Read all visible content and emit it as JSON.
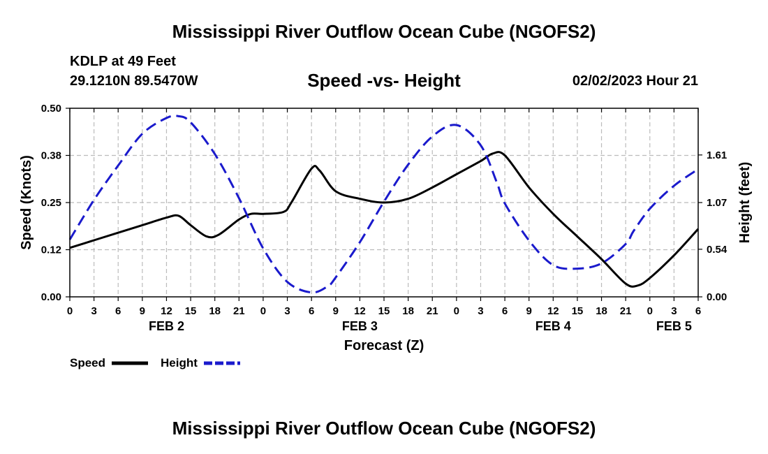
{
  "header": {
    "title": "Mississippi River Outflow Ocean Cube (NGOFS2)",
    "station": "KDLP at 49 Feet",
    "coords": "29.1210N  89.5470W",
    "subtitle": "Speed -vs- Height",
    "datetime": "02/02/2023 Hour 21"
  },
  "footer": {
    "title": "Mississippi River Outflow Ocean Cube (NGOFS2)"
  },
  "colors": {
    "speed": "#000000",
    "height": "#1a1acc",
    "grid": "#bbbbbb"
  },
  "chart_data": {
    "type": "line",
    "title": "Speed -vs- Height",
    "xlabel": "Forecast (Z)",
    "ylabel": "Speed (Knots)",
    "y2label": "Height (feet)",
    "xlim": [
      0,
      78
    ],
    "ylim": [
      0,
      0.5
    ],
    "y2lim": [
      0,
      2.14
    ],
    "x_ticks": [
      0,
      3,
      6,
      9,
      12,
      15,
      18,
      21,
      24,
      27,
      30,
      33,
      36,
      39,
      42,
      45,
      48,
      51,
      54,
      57,
      60,
      63,
      66,
      69,
      72,
      75,
      78
    ],
    "x_tick_labels": [
      "0",
      "3",
      "6",
      "9",
      "12",
      "15",
      "18",
      "21",
      "0",
      "3",
      "6",
      "9",
      "12",
      "15",
      "18",
      "21",
      "0",
      "3",
      "6",
      "9",
      "12",
      "15",
      "18",
      "21",
      "0",
      "3",
      "6"
    ],
    "y_ticks": [
      0,
      0.125,
      0.25,
      0.375,
      0.5
    ],
    "y_tick_labels": [
      "0.00",
      "0.12",
      "0.25",
      "0.38",
      "0.50"
    ],
    "y2_ticks": [
      0,
      0.54,
      1.07,
      1.61
    ],
    "y2_tick_labels": [
      "0.00",
      "0.54",
      "1.07",
      "1.61"
    ],
    "day_labels": [
      {
        "x": 12,
        "label": "FEB 2"
      },
      {
        "x": 36,
        "label": "FEB 3"
      },
      {
        "x": 60,
        "label": "FEB 4"
      },
      {
        "x": 75,
        "label": "FEB 5"
      }
    ],
    "series": [
      {
        "name": "Speed",
        "axis": "left",
        "style": "solid",
        "x": [
          0,
          3,
          6,
          9,
          12,
          13.5,
          15,
          17,
          18.5,
          21,
          22.5,
          24,
          26.5,
          27.5,
          30,
          31,
          33,
          36,
          39,
          42,
          45,
          48,
          51,
          52.5,
          54,
          57,
          60,
          63,
          66,
          69,
          70.5,
          72,
          75,
          78
        ],
        "y": [
          0.13,
          0.15,
          0.17,
          0.19,
          0.21,
          0.215,
          0.19,
          0.16,
          0.165,
          0.205,
          0.22,
          0.22,
          0.225,
          0.25,
          0.34,
          0.335,
          0.28,
          0.26,
          0.25,
          0.26,
          0.29,
          0.325,
          0.36,
          0.38,
          0.375,
          0.29,
          0.22,
          0.16,
          0.1,
          0.035,
          0.03,
          0.05,
          0.11,
          0.18
        ]
      },
      {
        "name": "Height",
        "axis": "right",
        "style": "dashed",
        "x": [
          0,
          3,
          6,
          9,
          12,
          13.5,
          15,
          18,
          21,
          24,
          27,
          30,
          32,
          33,
          36,
          39,
          42,
          45,
          48,
          51,
          53,
          54,
          57,
          60,
          63,
          66,
          69,
          70,
          72,
          75,
          78
        ],
        "y": [
          0.65,
          1.1,
          1.49,
          1.85,
          2.03,
          2.05,
          1.98,
          1.62,
          1.12,
          0.55,
          0.17,
          0.05,
          0.12,
          0.22,
          0.62,
          1.08,
          1.5,
          1.82,
          1.95,
          1.72,
          1.3,
          1.06,
          0.64,
          0.36,
          0.32,
          0.38,
          0.6,
          0.75,
          1.0,
          1.26,
          1.45
        ]
      }
    ],
    "legend": [
      {
        "label": "Speed",
        "style": "solid"
      },
      {
        "label": "Height",
        "style": "dashed"
      }
    ],
    "grid": true,
    "legend_position": "bottom-left"
  }
}
